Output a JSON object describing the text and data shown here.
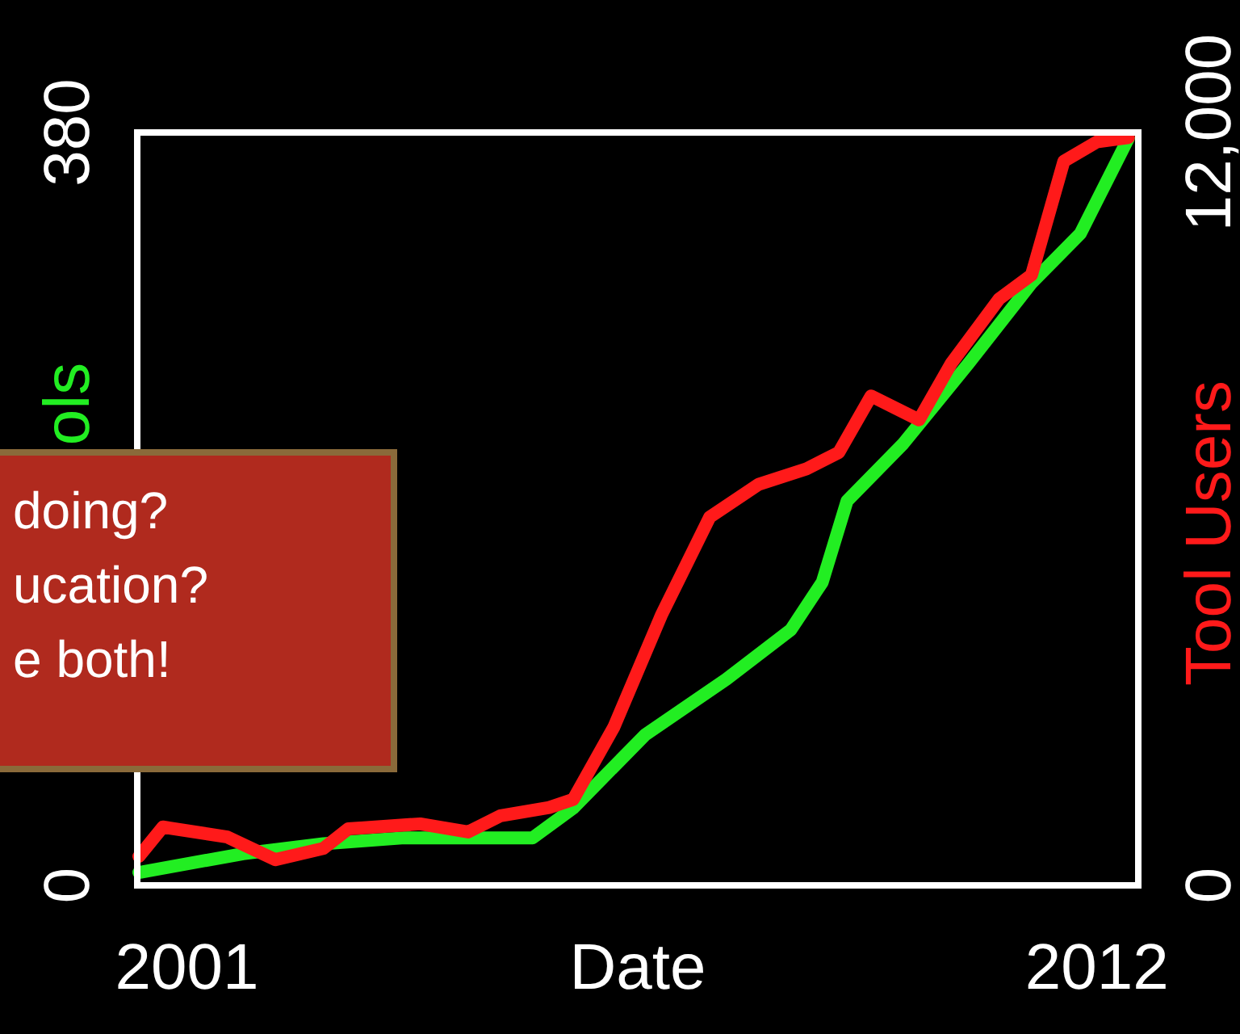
{
  "chart_data": {
    "type": "line",
    "xlabel": "Date",
    "ylabel": "ols",
    "y2label": "Tool Users",
    "xlim": [
      2000.4,
      2012.5
    ],
    "xticks": [
      2001,
      2012
    ],
    "ylim": [
      0,
      380
    ],
    "yticks": [
      0,
      380
    ],
    "y2lim": [
      0,
      12000
    ],
    "y2ticks": [
      0,
      {
        "value": 12000,
        "label": "12,000"
      }
    ],
    "series": [
      {
        "color": "#22ee22",
        "x": [
          2000.42,
          2001.68,
          2002.65,
          2003.63,
          2005.18,
          2005.67,
          2006.54,
          2007.52,
          2008.3,
          2008.68,
          2008.98,
          2009.66,
          2010.44,
          2011.21,
          2011.8,
          2012.38
        ],
        "values": [
          6.5,
          16,
          21,
          24,
          24,
          39,
          76,
          104,
          129,
          153,
          194,
          223,
          263,
          304,
          329,
          377
        ]
      },
      {
        "color": "#ff1a1a",
        "axis": "y2",
        "x": [
          2000.42,
          2000.71,
          2001.49,
          2002.07,
          2002.65,
          2002.95,
          2003.82,
          2004.4,
          2004.79,
          2005.38,
          2005.67,
          2006.16,
          2006.74,
          2007.32,
          2007.91,
          2008.49,
          2008.88,
          2009.27,
          2009.85,
          2010.24,
          2010.82,
          2011.21,
          2011.6,
          2012.0,
          2012.38
        ],
        "values": [
          460,
          930,
          770,
          410,
          590,
          900,
          980,
          850,
          1110,
          1240,
          1370,
          2520,
          4320,
          5870,
          6390,
          6640,
          6900,
          7800,
          7420,
          8320,
          9350,
          9730,
          11540,
          11850,
          11920
        ]
      }
    ],
    "annotations": [
      "doing?",
      "ucation?",
      "e both!"
    ]
  }
}
